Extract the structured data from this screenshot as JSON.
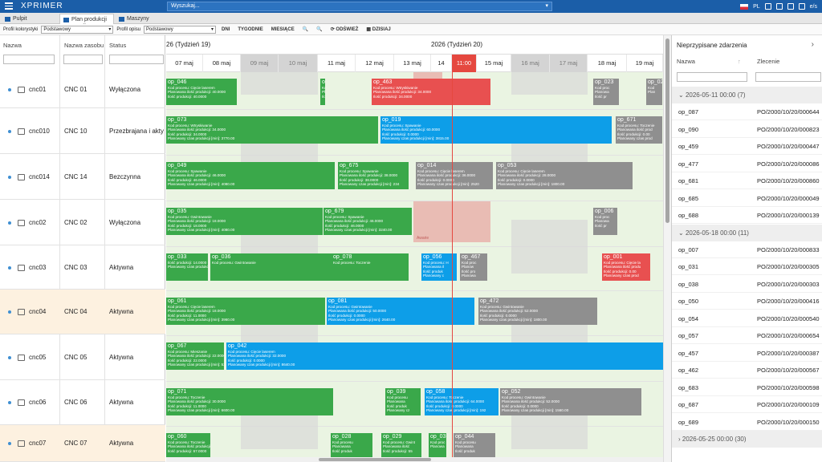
{
  "app": {
    "logo": "XPRIMER",
    "search_placeholder": "Wyszukaj...",
    "lang": "PL",
    "user": "e/s"
  },
  "tabs": [
    {
      "label": "Pulpit"
    },
    {
      "label": "Plan produkcji - ..."
    },
    {
      "label": "Maszyny"
    }
  ],
  "toolbar": {
    "profile_color_label": "Profil kolorystyki",
    "profile_color_value": "Podstawowy",
    "profile_desc_label": "Profil opisu",
    "profile_desc_value": "Podstawowy",
    "days": "DNI",
    "weeks": "TYGODNIE",
    "months": "MIESIĄCE",
    "refresh": "ODŚWIEŻ",
    "today": "DZISIAJ"
  },
  "columns": {
    "name": "Nazwa",
    "resource": "Nazwa zasobu",
    "status": "Status"
  },
  "weeks": [
    {
      "label": "26 (Tydzień 19)"
    },
    {
      "label": "2026 (Tydzień 20)"
    }
  ],
  "days": [
    "07 maj",
    "08 maj",
    "09 maj",
    "10 maj",
    "11 maj",
    "12 maj",
    "13 maj",
    "14",
    "11:00",
    "15 maj",
    "16 maj",
    "17 maj",
    "18 maj",
    "19 maj"
  ],
  "resources": [
    {
      "name": "cnc01",
      "resource": "CNC 01",
      "status": "Wyłączona"
    },
    {
      "name": "cnc010",
      "resource": "CNC 10",
      "status": "Przezbrajana i aktyw"
    },
    {
      "name": "cnc014",
      "resource": "CNC 14",
      "status": "Bezczynna"
    },
    {
      "name": "cnc02",
      "resource": "CNC 02",
      "status": "Wyłączona"
    },
    {
      "name": "cnc03",
      "resource": "CNC 03",
      "status": "Aktywna"
    },
    {
      "name": "cnc04",
      "resource": "CNC 04",
      "status": "Aktywna"
    },
    {
      "name": "cnc05",
      "resource": "CNC 05",
      "status": "Aktywna"
    },
    {
      "name": "cnc06",
      "resource": "CNC 06",
      "status": "Aktywna"
    },
    {
      "name": "cnc07",
      "resource": "CNC 07",
      "status": "Aktywna"
    }
  ],
  "bars": [
    [
      {
        "op": "op_046",
        "c": "g",
        "l": [
          "Kod procesu: Cięcie laserem",
          "Planowana ilość produkcji: 40.0000",
          "Ilość produkcji: 40.0000"
        ]
      },
      {
        "op": "op_690",
        "c": "g",
        "l": [
          "Kod procesu: Toc",
          "Planowana ilość",
          "Ilość produkcji: 0"
        ]
      },
      {
        "op": "op_463",
        "c": "r",
        "l": [
          "Kod procesu: Wtryskiwanie",
          "Planowana ilość produkcji: 34.0000",
          "Ilość produkcji: 34.0000"
        ]
      },
      {
        "op": "op_023",
        "c": "gr",
        "l": [
          "Kod proc",
          "Planowa",
          "Ilość pr"
        ]
      },
      {
        "op": "op_02",
        "c": "gr",
        "l": [
          "Kod",
          "Plan"
        ]
      }
    ],
    [
      {
        "op": "op_073",
        "c": "g",
        "l": [
          "Kod procesu: Wtryskiwanie",
          "Planowana ilość produkcji: 34.0000",
          "Ilość produkcji: 34.0000",
          "Planowany czas produkcji [min]: 3770.00"
        ]
      },
      {
        "op": "op_019",
        "c": "b",
        "l": [
          "Kod procesu: Spawanie",
          "Planowana ilość produkcji: 60.0000",
          "Ilość produkcji: 0.0000",
          "Planowany czas produkcji [min]: 3815.00"
        ]
      },
      {
        "op": "op_671",
        "c": "gr",
        "l": [
          "Kod procesu: Toczenie",
          "Planowana ilość prod",
          "Ilość produkcji: 0.00",
          "Planowany czas prod"
        ]
      }
    ],
    [
      {
        "op": "op_049",
        "c": "g",
        "l": [
          "Kod procesu: Spawanie",
          "Planowana ilość produkcji: 46.0000",
          "Ilość produkcji: 46.0000",
          "Planowany czas produkcji [min]: 4080.00"
        ]
      },
      {
        "op": "op_675",
        "c": "g",
        "l": [
          "Kod procesu: Spawanie",
          "Planowana ilość produkcji: 38.0000",
          "Ilość produkcji: 38.0000",
          "Planowany czas produkcji [min]: 234"
        ]
      },
      {
        "op": "op_014",
        "c": "gr",
        "l": [
          "Kod procesu: Cięcie laserem",
          "Planowana ilość produkcji: 36.0000",
          "Ilość produkcji: 0.0000",
          "Planowany czas produkcji [min]: 2520"
        ]
      },
      {
        "op": "op_053",
        "c": "gr",
        "l": [
          "Kod procesu: Cięcie laserem",
          "Planowana ilość produkcji: 28.0000",
          "Ilość produkcji: 0.0000",
          "Planowany czas produkcji [min]: 1800.00"
        ]
      }
    ],
    [
      {
        "op": "op_035",
        "c": "g",
        "l": [
          "Kod procesu: Gwintowanie",
          "Planowana ilość produkcji: 18.0000",
          "Ilość produkcji: 18.0000",
          "Planowany czas produkcji [min]: 4080.00"
        ]
      },
      {
        "op": "op_679",
        "c": "g",
        "l": [
          "Kod procesu: Spawanie",
          "Planowana ilość produkcji: 46.0000",
          "Ilość produkcji: 46.0000",
          "Planowany czas produkcji [min]: 3240.00"
        ]
      },
      {
        "op": "op_006",
        "c": "gr",
        "l": [
          "Kod proc",
          "Planowa",
          "Ilość pr"
        ]
      }
    ],
    [
      {
        "op": "op_033",
        "c": "g",
        "l": [
          "Ilość produkcji: 14.0000",
          "Planowany czas produkcji [min]: 3420.00"
        ]
      },
      {
        "op": "op_036",
        "c": "g",
        "l": [
          "Kod procesu: Gwintowanie"
        ]
      },
      {
        "op": "op_078",
        "c": "g",
        "l": [
          "Kod procesu: Toczenie"
        ]
      },
      {
        "op": "op_056",
        "c": "b",
        "l": [
          "Kod procesu: H",
          "Planowana il",
          "Ilość produk",
          "Planowany c"
        ]
      },
      {
        "op": "op_467",
        "c": "gr",
        "l": [
          "Kod proc",
          "Planow",
          "Ilość pro",
          "Planowa"
        ]
      },
      {
        "op": "op_001",
        "c": "r",
        "l": [
          "Kod procesu: Cięcie la",
          "Planowana ilość produ",
          "Ilość produkcji: 0.00",
          "Planowany czas prod"
        ]
      }
    ],
    [
      {
        "op": "op_061",
        "c": "g",
        "l": [
          "Kod procesu: Cięcie laserem",
          "Planowana ilość produkcji: 18.0000",
          "Ilość produkcji: 11.0000",
          "Planowany czas produkcji [min]: 3960.00"
        ]
      },
      {
        "op": "op_081",
        "c": "b",
        "l": [
          "Kod procesu: Gwintowanie",
          "Planowana ilość produkcji: 50.0000",
          "Ilość produkcji: 0.0000",
          "Planowany czas produkcji [min]: 2640.00"
        ]
      },
      {
        "op": "op_472",
        "c": "gr",
        "l": [
          "Kod procesu: Gwintowanie",
          "Planowana ilość produkcji: 52.0000",
          "Ilość produkcji: 0.0000",
          "Planowany czas produkcji [min]: 1800.00"
        ]
      }
    ],
    [
      {
        "op": "op_067",
        "c": "g",
        "l": [
          "Kod procesu: Mieszanie",
          "Planowana ilość produkcji: 22.0000",
          "Ilość produkcji: 22.0000",
          "Planowany czas produkcji [min]: 5280.00"
        ]
      },
      {
        "op": "op_042",
        "c": "b",
        "l": [
          "Kod procesu: Cięcie laserem",
          "Planowana ilość produkcji: 32.0000",
          "Ilość produkcji: 0.0000",
          "Planowany czas produkcji [min]: 8640.00"
        ]
      }
    ],
    [
      {
        "op": "op_071",
        "c": "g",
        "l": [
          "Kod procesu: Toczenie",
          "Planowana ilość produkcji: 30.0000",
          "Ilość produkcji: 11.0000",
          "Planowany czas produkcji [min]: 6600.00"
        ]
      },
      {
        "op": "op_039",
        "c": "g",
        "l": [
          "Kod procesu",
          "Planowana",
          "Ilość produk",
          "Planowany cz"
        ]
      },
      {
        "op": "op_058",
        "c": "b",
        "l": [
          "Kod procesu: Toczenie",
          "Planowana ilość produkcji: 64.0000",
          "Ilość produkcji: 0.0000",
          "Planowany czas produkcji [min]: 192"
        ]
      },
      {
        "op": "op_052",
        "c": "gr",
        "l": [
          "Kod procesu: Gwintowanie",
          "Planowana ilość produkcji: 52.0000",
          "Ilość produkcji: 0.0000",
          "Planowany czas produkcji [min]: 1560.00"
        ]
      }
    ],
    [
      {
        "op": "op_060",
        "c": "g",
        "l": [
          "Kod procesu: Toczenie",
          "Planowana ilość produkcji: 60.0000",
          "Ilość produkcji: 67.0000"
        ]
      },
      {
        "op": "op_028",
        "c": "g",
        "l": [
          "Kod procesu",
          "Planowana",
          "Ilość produk"
        ]
      },
      {
        "op": "op_029",
        "c": "g",
        "l": [
          "Kod procesu: Gwint",
          "Planowana ilość",
          "Ilość produkcji: 55"
        ]
      },
      {
        "op": "op_03(",
        "c": "g",
        "l": [
          "Kod proc",
          "Planowa"
        ]
      },
      {
        "op": "op_044",
        "c": "gr",
        "l": [
          "Kod procesu",
          "Planowana",
          "Ilość produk"
        ]
      }
    ]
  ],
  "alarm_label": "Awarie",
  "right": {
    "title": "Nieprzypisane zdarzenia",
    "col_name": "Nazwa",
    "col_order": "Zlecenie",
    "groups": [
      {
        "label": "2026-05-11 00:00 (7)",
        "rows": [
          [
            "op_087",
            "PO/2000/10/20/000644"
          ],
          [
            "op_090",
            "PO/2000/10/20/000823"
          ],
          [
            "op_459",
            "PO/2000/10/20/000447"
          ],
          [
            "op_477",
            "PO/2000/10/20/000086"
          ],
          [
            "op_681",
            "PO/2000/10/20/000860"
          ],
          [
            "op_685",
            "PO/2000/10/20/000049"
          ],
          [
            "op_688",
            "PO/2000/10/20/000139"
          ]
        ]
      },
      {
        "label": "2026-05-18 00:00 (11)",
        "rows": [
          [
            "op_007",
            "PO/2000/10/20/000833"
          ],
          [
            "op_031",
            "PO/2000/10/20/000305"
          ],
          [
            "op_038",
            "PO/2000/10/20/000303"
          ],
          [
            "op_050",
            "PO/2000/10/20/000416"
          ],
          [
            "op_054",
            "PO/2000/10/20/000540"
          ],
          [
            "op_057",
            "PO/2000/10/20/000654"
          ],
          [
            "op_457",
            "PO/2000/10/20/000387"
          ],
          [
            "op_462",
            "PO/2000/10/20/000567"
          ],
          [
            "op_683",
            "PO/2000/10/20/000598"
          ],
          [
            "op_687",
            "PO/2000/10/20/000109"
          ],
          [
            "op_689",
            "PO/2000/10/20/000150"
          ]
        ]
      },
      {
        "label": "2026-05-25 00:00 (30)",
        "rows": []
      }
    ]
  }
}
